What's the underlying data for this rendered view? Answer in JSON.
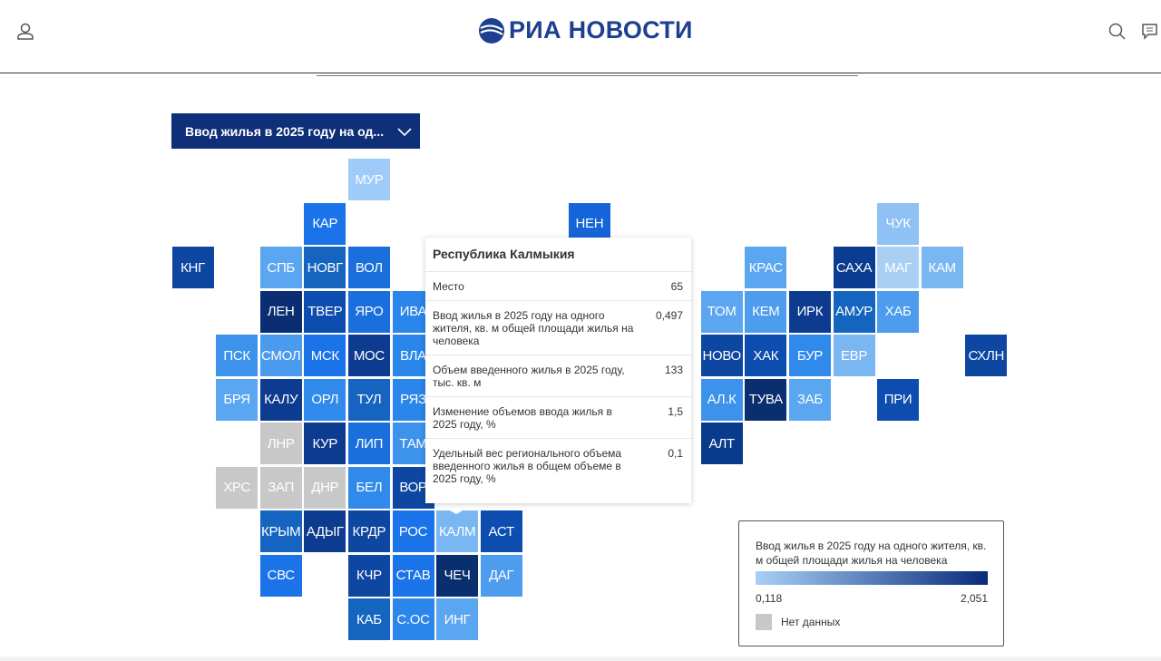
{
  "header": {
    "logo": "РИА НОВОСТИ"
  },
  "dropdown": {
    "label": "Ввод жилья в 2025 году на од..."
  },
  "tiles": [
    {
      "label": "МУР",
      "col": 4,
      "row": 0,
      "color": "#9ecbf7"
    },
    {
      "label": "КАР",
      "col": 3,
      "row": 1,
      "color": "#1a73e8"
    },
    {
      "label": "НЕН",
      "col": 9,
      "row": 1,
      "color": "#1565d8"
    },
    {
      "label": "ЧУК",
      "col": 16,
      "row": 1,
      "color": "#8fc1f5"
    },
    {
      "label": "КНГ",
      "col": 0,
      "row": 2,
      "color": "#0d47a1"
    },
    {
      "label": "СПБ",
      "col": 2,
      "row": 2,
      "color": "#5aa6f0"
    },
    {
      "label": "НОВГ",
      "col": 3,
      "row": 2,
      "color": "#1565c0"
    },
    {
      "label": "ВОЛ",
      "col": 4,
      "row": 2,
      "color": "#1a6fdc"
    },
    {
      "label": "КРАС",
      "col": 13,
      "row": 2,
      "color": "#5aa6f0"
    },
    {
      "label": "САХА",
      "col": 15,
      "row": 2,
      "color": "#0a3d91"
    },
    {
      "label": "МАГ",
      "col": 16,
      "row": 2,
      "color": "#a9cff5"
    },
    {
      "label": "КАМ",
      "col": 17,
      "row": 2,
      "color": "#7ab7f2"
    },
    {
      "label": "ЛЕН",
      "col": 2,
      "row": 3,
      "color": "#0b2e73"
    },
    {
      "label": "ТВЕР",
      "col": 3,
      "row": 3,
      "color": "#0d4db0"
    },
    {
      "label": "ЯРО",
      "col": 4,
      "row": 3,
      "color": "#1a6fdc"
    },
    {
      "label": "ИВА",
      "col": 5,
      "row": 3,
      "color": "#2a86ea"
    },
    {
      "label": "ТОМ",
      "col": 12,
      "row": 3,
      "color": "#5aa6f0"
    },
    {
      "label": "КЕМ",
      "col": 13,
      "row": 3,
      "color": "#4d9cee"
    },
    {
      "label": "ИРК",
      "col": 14,
      "row": 3,
      "color": "#0d3b8f"
    },
    {
      "label": "АМУР",
      "col": 15,
      "row": 3,
      "color": "#1565c0"
    },
    {
      "label": "ХАБ",
      "col": 16,
      "row": 3,
      "color": "#4d9cee"
    },
    {
      "label": "ПСК",
      "col": 1,
      "row": 4,
      "color": "#3d93ec"
    },
    {
      "label": "СМОЛ",
      "col": 2,
      "row": 4,
      "color": "#4a9bee"
    },
    {
      "label": "МСК",
      "col": 3,
      "row": 4,
      "color": "#1a73e8"
    },
    {
      "label": "МОС",
      "col": 4,
      "row": 4,
      "color": "#0d3b8f"
    },
    {
      "label": "ВЛА",
      "col": 5,
      "row": 4,
      "color": "#2a86ea"
    },
    {
      "label": "НОВО",
      "col": 12,
      "row": 4,
      "color": "#0d47a1"
    },
    {
      "label": "ХАК",
      "col": 13,
      "row": 4,
      "color": "#0d4db0"
    },
    {
      "label": "БУР",
      "col": 14,
      "row": 4,
      "color": "#2f8aeb"
    },
    {
      "label": "ЕВР",
      "col": 15,
      "row": 4,
      "color": "#7ab7f2"
    },
    {
      "label": "СХЛН",
      "col": 18,
      "row": 4,
      "color": "#0d47a1"
    },
    {
      "label": "БРЯ",
      "col": 1,
      "row": 5,
      "color": "#5aa6f0"
    },
    {
      "label": "КАЛУ",
      "col": 2,
      "row": 5,
      "color": "#0d3b8f"
    },
    {
      "label": "ОРЛ",
      "col": 3,
      "row": 5,
      "color": "#2f8aeb"
    },
    {
      "label": "ТУЛ",
      "col": 4,
      "row": 5,
      "color": "#1565c0"
    },
    {
      "label": "РЯЗ",
      "col": 5,
      "row": 5,
      "color": "#2a86ea"
    },
    {
      "label": "АЛ.К",
      "col": 12,
      "row": 5,
      "color": "#3d93ec"
    },
    {
      "label": "ТУВА",
      "col": 13,
      "row": 5,
      "color": "#0a2f6f"
    },
    {
      "label": "ЗАБ",
      "col": 14,
      "row": 5,
      "color": "#5aa6f0"
    },
    {
      "label": "ПРИ",
      "col": 16,
      "row": 5,
      "color": "#0d4db0"
    },
    {
      "label": "ЛНР",
      "col": 2,
      "row": 6,
      "color": "#c8c8c8"
    },
    {
      "label": "КУР",
      "col": 3,
      "row": 6,
      "color": "#0d3b8f"
    },
    {
      "label": "ЛИП",
      "col": 4,
      "row": 6,
      "color": "#1a6fdc"
    },
    {
      "label": "ТАМ",
      "col": 5,
      "row": 6,
      "color": "#3d93ec"
    },
    {
      "label": "АЛТ",
      "col": 12,
      "row": 6,
      "color": "#0a3a8c"
    },
    {
      "label": "ХРС",
      "col": 1,
      "row": 7,
      "color": "#c8c8c8"
    },
    {
      "label": "ЗАП",
      "col": 2,
      "row": 7,
      "color": "#c8c8c8"
    },
    {
      "label": "ДНР",
      "col": 3,
      "row": 7,
      "color": "#c8c8c8"
    },
    {
      "label": "БЕЛ",
      "col": 4,
      "row": 7,
      "color": "#2f8aeb"
    },
    {
      "label": "ВОР",
      "col": 5,
      "row": 7,
      "color": "#0d47a1"
    },
    {
      "label": "КРЫМ",
      "col": 2,
      "row": 8,
      "color": "#1565c0"
    },
    {
      "label": "АДЫГ",
      "col": 3,
      "row": 8,
      "color": "#0d3b8f"
    },
    {
      "label": "КРДР",
      "col": 4,
      "row": 8,
      "color": "#0d47a1"
    },
    {
      "label": "РОС",
      "col": 5,
      "row": 8,
      "color": "#1a73e8"
    },
    {
      "label": "КАЛМ",
      "col": 6,
      "row": 8,
      "color": "#7ab7f2"
    },
    {
      "label": "АСТ",
      "col": 7,
      "row": 8,
      "color": "#0d4db0"
    },
    {
      "label": "СВС",
      "col": 2,
      "row": 9,
      "color": "#1a73e8"
    },
    {
      "label": "КЧР",
      "col": 4,
      "row": 9,
      "color": "#0d47a1"
    },
    {
      "label": "СТАВ",
      "col": 5,
      "row": 9,
      "color": "#1a73e8"
    },
    {
      "label": "ЧЕЧ",
      "col": 6,
      "row": 9,
      "color": "#0a2f6f"
    },
    {
      "label": "ДАГ",
      "col": 7,
      "row": 9,
      "color": "#4d9cee"
    },
    {
      "label": "КАБ",
      "col": 4,
      "row": 10,
      "color": "#1565c0"
    },
    {
      "label": "С.ОС",
      "col": 5,
      "row": 10,
      "color": "#2a86ea"
    },
    {
      "label": "ИНГ",
      "col": 6,
      "row": 10,
      "color": "#5aa6f0"
    }
  ],
  "tooltip": {
    "title": "Республика Калмыкия",
    "rows": [
      {
        "label": "Место",
        "value": "65"
      },
      {
        "label": "Ввод жилья в 2025 году на одного жителя, кв. м общей площади жилья на человека",
        "value": "0,497"
      },
      {
        "label": "Объем введенного жилья в 2025 году, тыс. кв. м",
        "value": "133"
      },
      {
        "label": "Изменение объемов ввода жилья в 2025 году, %",
        "value": "1,5"
      },
      {
        "label": "Удельный вес регионального объема введенного жилья в общем объеме в 2025 году, %",
        "value": "0,1"
      }
    ]
  },
  "legend": {
    "title": "Ввод жилья в 2025 году на одного жителя, кв. м общей площади жилья на человека",
    "min": "0,118",
    "max": "2,051",
    "no_data": "Нет данных"
  }
}
